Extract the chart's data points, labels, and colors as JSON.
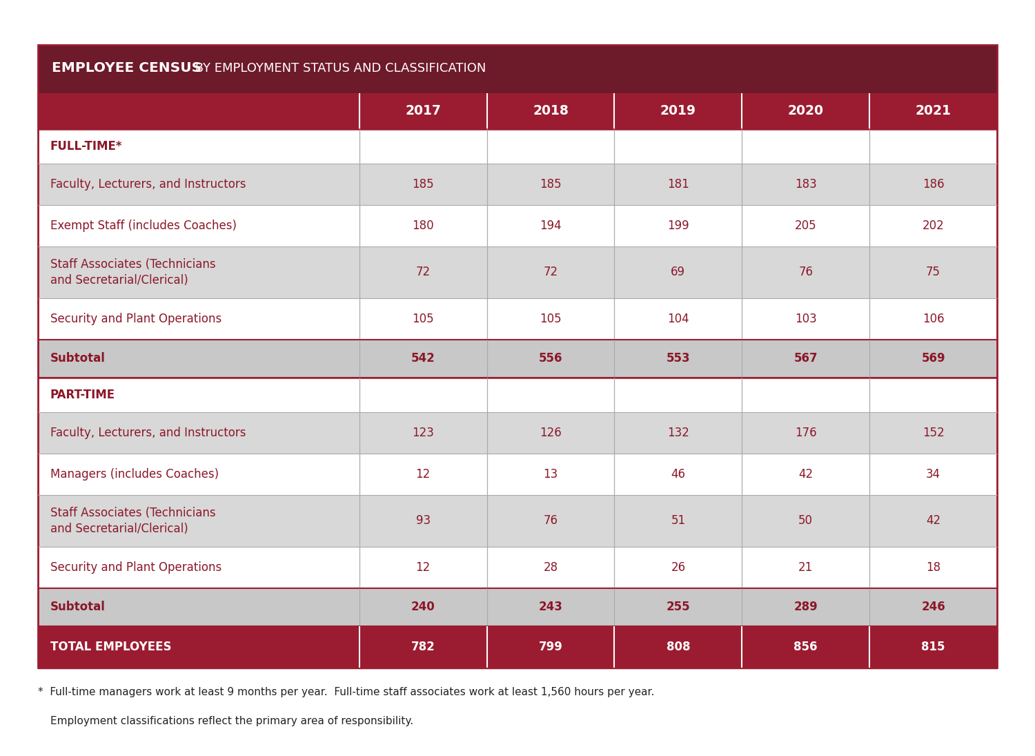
{
  "title_bold": "EMPLOYEE CENSUS",
  "title_regular": " BY EMPLOYMENT STATUS AND CLASSIFICATION",
  "years": [
    "2017",
    "2018",
    "2019",
    "2020",
    "2021"
  ],
  "title_bg": "#6D1A2A",
  "subheader_bg": "#9B1C31",
  "row_bg_light": "#D8D8D8",
  "row_bg_white": "#FFFFFF",
  "subtotal_bg": "#C8C8C8",
  "total_bg": "#9B1C31",
  "border_color": "#9B1C31",
  "text_dark_red": "#8B1728",
  "text_white": "#FFFFFF",
  "rows": [
    {
      "type": "section",
      "label": "FULL-TIME*",
      "values": [
        null,
        null,
        null,
        null,
        null
      ]
    },
    {
      "type": "data",
      "label": "Faculty, Lecturers, and Instructors",
      "values": [
        185,
        185,
        181,
        183,
        186
      ]
    },
    {
      "type": "data",
      "label": "Exempt Staff (includes Coaches)",
      "values": [
        180,
        194,
        199,
        205,
        202
      ]
    },
    {
      "type": "data2",
      "label": "Staff Associates (Technicians\nand Secretarial/Clerical)",
      "values": [
        72,
        72,
        69,
        76,
        75
      ]
    },
    {
      "type": "data",
      "label": "Security and Plant Operations",
      "values": [
        105,
        105,
        104,
        103,
        106
      ]
    },
    {
      "type": "subtotal",
      "label": "Subtotal",
      "values": [
        542,
        556,
        553,
        567,
        569
      ]
    },
    {
      "type": "section",
      "label": "PART-TIME",
      "values": [
        null,
        null,
        null,
        null,
        null
      ]
    },
    {
      "type": "data",
      "label": "Faculty, Lecturers, and Instructors",
      "values": [
        123,
        126,
        132,
        176,
        152
      ]
    },
    {
      "type": "data",
      "label": "Managers (includes Coaches)",
      "values": [
        12,
        13,
        46,
        42,
        34
      ]
    },
    {
      "type": "data2",
      "label": "Staff Associates (Technicians\nand Secretarial/Clerical)",
      "values": [
        93,
        76,
        51,
        50,
        42
      ]
    },
    {
      "type": "data",
      "label": "Security and Plant Operations",
      "values": [
        12,
        28,
        26,
        21,
        18
      ]
    },
    {
      "type": "subtotal",
      "label": "Subtotal",
      "values": [
        240,
        243,
        255,
        289,
        246
      ]
    },
    {
      "type": "total",
      "label": "TOTAL EMPLOYEES",
      "values": [
        782,
        799,
        808,
        856,
        815
      ]
    }
  ],
  "footnote_line1": "*  Full-time managers work at least 9 months per year.  Full-time staff associates work at least 1,560 hours per year.",
  "footnote_line2": "   Employment classifications reflect the primary area of responsibility."
}
